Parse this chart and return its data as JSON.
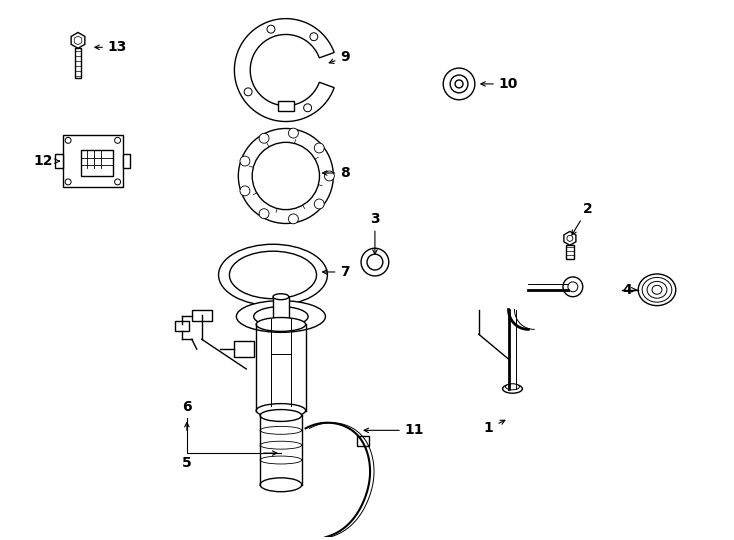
{
  "bg_color": "#ffffff",
  "line_color": "#000000",
  "text_color": "#000000",
  "fig_width": 7.34,
  "fig_height": 5.4,
  "dpi": 100
}
